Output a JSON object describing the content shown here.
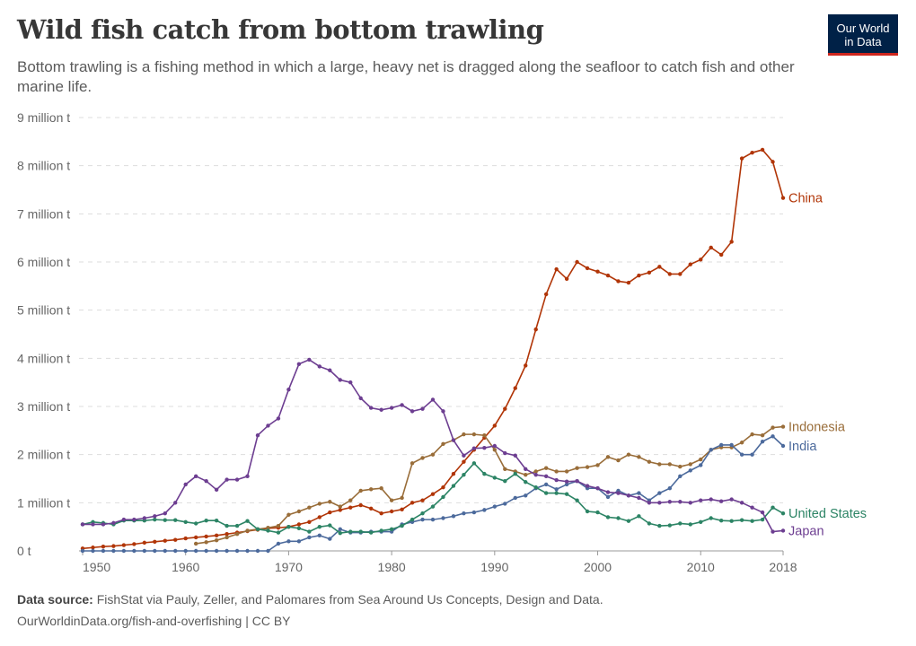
{
  "header": {
    "title": "Wild fish catch from bottom trawling",
    "subtitle": "Bottom trawling is a fishing method in which a large, heavy net is dragged along the seafloor to catch fish and other marine life.",
    "logo_line1": "Our World",
    "logo_line2": "in Data"
  },
  "footer": {
    "source_label": "Data source:",
    "source_text": " FishStat via Pauly, Zeller, and Palomares from Sea Around Us Concepts, Design and Data.",
    "url": "OurWorldinData.org/fish-and-overfishing | CC BY"
  },
  "chart_data": {
    "type": "line",
    "title": "Wild fish catch from bottom trawling",
    "xlabel": "",
    "ylabel": "",
    "x_start": 1950,
    "x_end": 2018,
    "ylim": [
      0,
      9000000
    ],
    "y_ticks": [
      "0 t",
      "1 million t",
      "2 million t",
      "3 million t",
      "4 million t",
      "5 million t",
      "6 million t",
      "7 million t",
      "8 million t",
      "9 million t"
    ],
    "x_ticks": [
      "1950",
      "1960",
      "1970",
      "1980",
      "1990",
      "2000",
      "2010",
      "2018"
    ],
    "grid": true,
    "legend": "inline-right",
    "unit": "million t",
    "series": [
      {
        "name": "China",
        "color": "#b13507",
        "values": [
          0.05,
          0.07,
          0.09,
          0.1,
          0.12,
          0.14,
          0.17,
          0.19,
          0.21,
          0.23,
          0.26,
          0.28,
          0.3,
          0.32,
          0.35,
          0.38,
          0.41,
          0.44,
          0.47,
          0.48,
          0.5,
          0.55,
          0.6,
          0.7,
          0.8,
          0.85,
          0.9,
          0.95,
          0.88,
          0.78,
          0.82,
          0.86,
          1.0,
          1.05,
          1.18,
          1.32,
          1.6,
          1.85,
          2.1,
          2.35,
          2.6,
          2.95,
          3.38,
          3.85,
          4.6,
          5.33,
          5.85,
          5.65,
          6.0,
          5.87,
          5.8,
          5.72,
          5.6,
          5.57,
          5.72,
          5.78,
          5.9,
          5.75,
          5.75,
          5.95,
          6.05,
          6.3,
          6.15,
          6.42,
          8.15,
          8.27,
          8.33,
          8.08,
          7.33
        ]
      },
      {
        "name": "Indonesia",
        "color": "#996d39",
        "values": [
          null,
          null,
          null,
          null,
          null,
          null,
          null,
          null,
          null,
          null,
          null,
          0.15,
          0.18,
          0.22,
          0.28,
          0.35,
          0.42,
          0.45,
          0.48,
          0.52,
          0.75,
          0.82,
          0.9,
          0.98,
          1.02,
          0.92,
          1.05,
          1.25,
          1.28,
          1.3,
          1.05,
          1.1,
          1.82,
          1.93,
          2.0,
          2.22,
          2.3,
          2.42,
          2.42,
          2.4,
          2.1,
          1.7,
          1.65,
          1.58,
          1.65,
          1.72,
          1.65,
          1.65,
          1.72,
          1.74,
          1.78,
          1.95,
          1.88,
          2.0,
          1.95,
          1.85,
          1.8,
          1.8,
          1.75,
          1.8,
          1.9,
          2.1,
          2.15,
          2.15,
          2.25,
          2.42,
          2.4,
          2.56,
          2.58
        ]
      },
      {
        "name": "India",
        "color": "#4c6a9c",
        "values": [
          0,
          0,
          0,
          0,
          0,
          0,
          0,
          0,
          0,
          0,
          0,
          0,
          0,
          0,
          0,
          0,
          0,
          0,
          0,
          0.15,
          0.2,
          0.2,
          0.28,
          0.32,
          0.25,
          0.45,
          0.38,
          0.38,
          0.4,
          0.4,
          0.4,
          0.55,
          0.6,
          0.65,
          0.65,
          0.68,
          0.72,
          0.78,
          0.8,
          0.85,
          0.92,
          0.98,
          1.1,
          1.15,
          1.3,
          1.38,
          1.28,
          1.38,
          1.45,
          1.3,
          1.3,
          1.12,
          1.25,
          1.15,
          1.2,
          1.05,
          1.2,
          1.3,
          1.55,
          1.67,
          1.78,
          2.1,
          2.2,
          2.2,
          2.0,
          2.0,
          2.27,
          2.38,
          2.18
        ]
      },
      {
        "name": "United States",
        "color": "#2c8465",
        "values": [
          0.55,
          0.6,
          0.58,
          0.55,
          0.63,
          0.63,
          0.63,
          0.65,
          0.64,
          0.64,
          0.6,
          0.57,
          0.63,
          0.63,
          0.52,
          0.52,
          0.62,
          0.45,
          0.42,
          0.38,
          0.5,
          0.47,
          0.4,
          0.5,
          0.53,
          0.37,
          0.4,
          0.4,
          0.38,
          0.42,
          0.45,
          0.52,
          0.65,
          0.78,
          0.92,
          1.12,
          1.35,
          1.58,
          1.82,
          1.6,
          1.52,
          1.45,
          1.6,
          1.43,
          1.32,
          1.2,
          1.2,
          1.18,
          1.05,
          0.82,
          0.8,
          0.7,
          0.68,
          0.62,
          0.72,
          0.57,
          0.52,
          0.53,
          0.57,
          0.55,
          0.6,
          0.68,
          0.63,
          0.62,
          0.64,
          0.62,
          0.65,
          0.9,
          0.78
        ]
      },
      {
        "name": "Japan",
        "color": "#6d3e91",
        "values": [
          0.55,
          0.55,
          0.55,
          0.58,
          0.65,
          0.65,
          0.68,
          0.72,
          0.78,
          1.0,
          1.38,
          1.55,
          1.45,
          1.27,
          1.48,
          1.48,
          1.55,
          2.4,
          2.6,
          2.75,
          3.35,
          3.88,
          3.97,
          3.83,
          3.75,
          3.55,
          3.5,
          3.17,
          2.97,
          2.93,
          2.97,
          3.03,
          2.9,
          2.95,
          3.14,
          2.9,
          2.3,
          1.98,
          2.13,
          2.14,
          2.18,
          2.03,
          1.98,
          1.7,
          1.58,
          1.55,
          1.47,
          1.44,
          1.45,
          1.35,
          1.3,
          1.22,
          1.2,
          1.15,
          1.1,
          1.0,
          1.0,
          1.02,
          1.02,
          1.0,
          1.05,
          1.07,
          1.03,
          1.07,
          1.0,
          0.9,
          0.8,
          0.4,
          0.42
        ]
      }
    ]
  }
}
